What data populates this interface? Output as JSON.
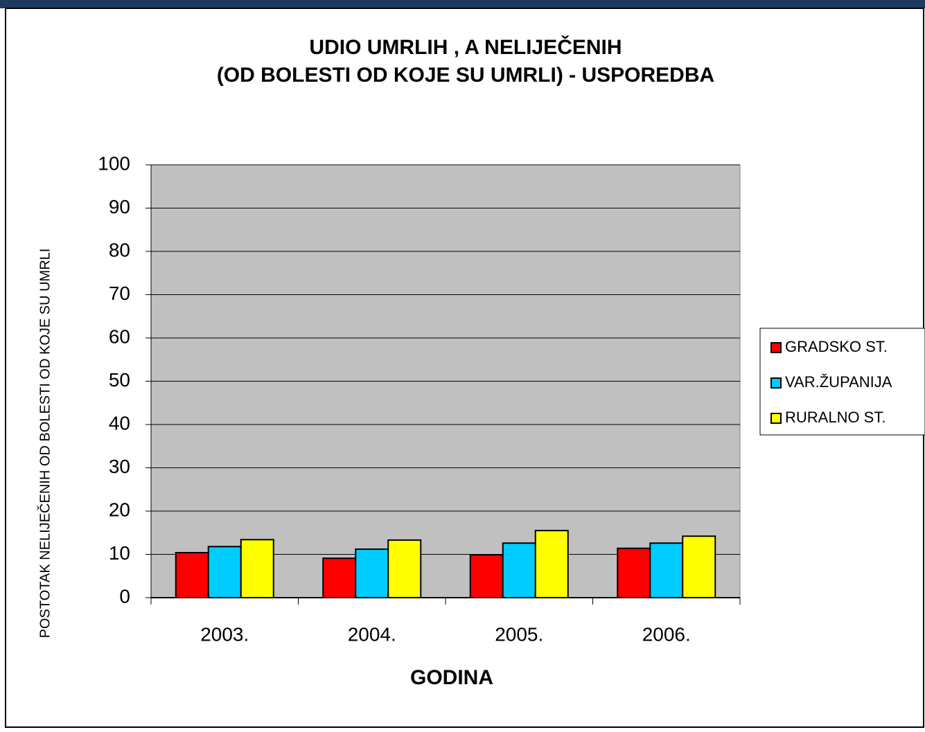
{
  "chart_data": {
    "type": "bar",
    "title": [
      "UDIO UMRLIH , A NELIJEČENIH",
      "(OD BOLESTI OD KOJE SU UMRLI) - USPOREDBA"
    ],
    "x_label": "GODINA",
    "y_label": "POSTOTAK NELIJEČENIH OD BOLESTI OD KOJE SU UMRLI",
    "categories": [
      "2003.",
      "2004.",
      "2005.",
      "2006."
    ],
    "series": [
      {
        "name": "GRADSKO ST.",
        "color": "#ff0000",
        "values": [
          10.4,
          9.1,
          9.9,
          11.4
        ]
      },
      {
        "name": "VAR.ŽUPANIJA",
        "color": "#00ccff",
        "values": [
          11.8,
          11.2,
          12.6,
          12.6
        ]
      },
      {
        "name": "RURALNO ST.",
        "color": "#ffff00",
        "values": [
          13.4,
          13.3,
          15.5,
          14.2
        ]
      }
    ],
    "ylim": [
      0,
      100
    ],
    "yticks": [
      0,
      10,
      20,
      30,
      40,
      50,
      60,
      70,
      80,
      90,
      100
    ],
    "grid": true,
    "legend": "right"
  }
}
